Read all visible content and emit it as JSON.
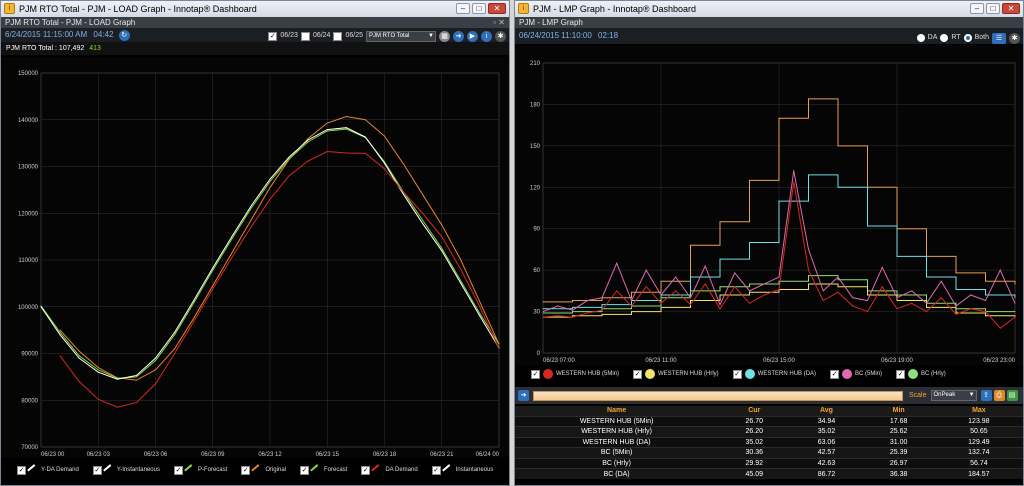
{
  "left": {
    "window_title": "PJM RTO Total - PJM - LOAD Graph - Innotap® Dashboard",
    "subtitle": "PJM RTO Total - PJM - LOAD Graph",
    "timestamp": "6/24/2015 11:15:00 AM",
    "refresh": "04:42",
    "date_checks": [
      "06/23",
      "06/24",
      "06/25"
    ],
    "zone_select": "PJM RTO Total",
    "summary_label": "PJM RTO Total :",
    "summary_value": "107,492",
    "summary_delta": "413",
    "legend": [
      {
        "label": "Y-DA Demand",
        "color": "#ffffff"
      },
      {
        "label": "Y-Instantaneous",
        "color": "#ffffff"
      },
      {
        "label": "P-Forecast",
        "color": "#7fdc3a"
      },
      {
        "label": "Original",
        "color": "#e8822a"
      },
      {
        "label": "Forecast",
        "color": "#7fdc3a"
      },
      {
        "label": "DA Demand",
        "color": "#d8281e"
      },
      {
        "label": "Instantaneous",
        "color": "#ffffff"
      }
    ],
    "chart_data": {
      "type": "line",
      "title": "",
      "xlabel": "",
      "ylabel": "",
      "ylim": [
        70000,
        150000
      ],
      "yticks": [
        70000,
        80000,
        90000,
        100000,
        110000,
        120000,
        130000,
        140000,
        150000
      ],
      "xticks": [
        "06/23 00",
        "06/23 03",
        "06/23 06",
        "06/23 09",
        "06/23 12",
        "06/23 15",
        "06/23 18",
        "06/23 21",
        "06/24 00"
      ],
      "xlim": [
        0,
        24
      ],
      "grid": true,
      "series": [
        {
          "name": "Original",
          "color": "#e8822a",
          "x": [
            1,
            2,
            3,
            4,
            5,
            6,
            7,
            8,
            9,
            10,
            11,
            12,
            13,
            14,
            15,
            16,
            17,
            18,
            19,
            20,
            21,
            22,
            23,
            24
          ],
          "y": [
            95000,
            90500,
            87000,
            84800,
            84300,
            86500,
            91000,
            97500,
            104500,
            111500,
            118500,
            125500,
            131500,
            136000,
            139300,
            140700,
            140000,
            136500,
            130500,
            124000,
            117500,
            110000,
            101000,
            92000
          ]
        },
        {
          "name": "Forecast",
          "color": "#7fdc3a",
          "x": [
            0,
            1,
            2,
            3,
            4,
            5,
            6,
            7,
            8,
            9,
            10,
            11,
            12,
            13,
            14,
            15,
            16,
            17,
            18,
            19,
            20,
            21,
            22,
            23,
            24
          ],
          "y": [
            100200,
            94500,
            89500,
            86500,
            84700,
            85000,
            88500,
            94000,
            100800,
            107800,
            114500,
            121000,
            126800,
            131600,
            135300,
            137600,
            138000,
            136200,
            131000,
            124500,
            118500,
            112500,
            105500,
            98500,
            92000
          ]
        },
        {
          "name": "Instantaneous",
          "color": "#ffffff",
          "x": [
            0,
            1,
            2,
            3,
            4,
            5,
            6,
            7,
            8,
            9,
            10,
            11,
            12,
            13,
            14,
            15,
            16,
            17,
            18,
            19,
            20,
            21,
            22,
            23,
            24
          ],
          "y": [
            100000,
            94000,
            89000,
            86000,
            84500,
            85300,
            89000,
            94500,
            101300,
            108300,
            115000,
            121500,
            127300,
            132000,
            135700,
            137900,
            138300,
            136300,
            130700,
            124000,
            117800,
            112000,
            105000,
            98000,
            91200
          ]
        },
        {
          "name": "DA Demand",
          "color": "#d8281e",
          "x": [
            1,
            2,
            3,
            4,
            5,
            6,
            7,
            8,
            9,
            10,
            11,
            12,
            13,
            14,
            15,
            16,
            17,
            18,
            19,
            20,
            21,
            22,
            23,
            24
          ],
          "y": [
            89500,
            84000,
            80200,
            78500,
            79500,
            83500,
            90000,
            96800,
            103800,
            110500,
            117000,
            123000,
            128000,
            131200,
            133200,
            132900,
            132800,
            129500,
            124500,
            120000,
            115000,
            108000,
            100000,
            91000
          ]
        }
      ]
    }
  },
  "right": {
    "window_title": "PJM - LMP Graph - Innotap® Dashboard",
    "subtitle": "PJM - LMP Graph",
    "timestamp": "06/24/2015 11:10:00",
    "refresh": "02:18",
    "radio_options": [
      "DA",
      "RT",
      "Both"
    ],
    "legend": [
      {
        "label": "WESTERN HUB (5Min)",
        "color": "#d8281e"
      },
      {
        "label": "WESTERN HUB (Hrly)",
        "color": "#f3e36a"
      },
      {
        "label": "WESTERN HUB (DA)",
        "color": "#6fe0e8"
      },
      {
        "label": "BC (5Min)",
        "color": "#e06ab0"
      },
      {
        "label": "BC (Hrly)",
        "color": "#8ee07a"
      }
    ],
    "scale_label": "Scale",
    "scale_value": "OnPeak",
    "table": {
      "headers": [
        "Name",
        "Cur",
        "Avg",
        "Min",
        "Max"
      ],
      "rows": [
        [
          "WESTERN HUB (5Min)",
          "26.70",
          "34.94",
          "17.68",
          "123.98"
        ],
        [
          "WESTERN HUB (Hrly)",
          "26.20",
          "35.02",
          "25.62",
          "50.65"
        ],
        [
          "WESTERN HUB (DA)",
          "35.02",
          "63.06",
          "31.00",
          "129.49"
        ],
        [
          "BC (5Min)",
          "30.36",
          "42.57",
          "25.39",
          "132.74"
        ],
        [
          "BC (Hrly)",
          "29.92",
          "42.63",
          "26.97",
          "56.74"
        ],
        [
          "BC (DA)",
          "45.09",
          "86.72",
          "36.38",
          "184.57"
        ]
      ]
    },
    "chart_data": {
      "type": "line",
      "title": "",
      "xlabel": "",
      "ylabel": "",
      "ylim": [
        0,
        210
      ],
      "yticks": [
        0,
        30,
        60,
        90,
        120,
        150,
        180,
        210
      ],
      "xticks": [
        "06/23 07:00",
        "06/23 11:00",
        "06/23 15:00",
        "06/23 19:00",
        "06/23 23:00"
      ],
      "xlim": [
        7,
        23
      ],
      "grid": true,
      "series": [
        {
          "name": "BC (DA)",
          "color": "#e8a050",
          "step": true,
          "x": [
            7,
            8,
            9,
            10,
            11,
            12,
            13,
            14,
            15,
            16,
            17,
            18,
            19,
            20,
            21,
            22,
            23
          ],
          "y": [
            37,
            38,
            40,
            44,
            52,
            78,
            95,
            125,
            170,
            184,
            150,
            120,
            90,
            70,
            58,
            52,
            50
          ]
        },
        {
          "name": "WESTERN HUB (DA)",
          "color": "#6fe0e8",
          "step": true,
          "x": [
            7,
            8,
            9,
            10,
            11,
            12,
            13,
            14,
            15,
            16,
            17,
            18,
            19,
            20,
            21,
            22,
            23
          ],
          "y": [
            32,
            33,
            35,
            38,
            42,
            55,
            68,
            80,
            110,
            129,
            120,
            92,
            70,
            55,
            46,
            42,
            40
          ]
        },
        {
          "name": "BC (Hrly)",
          "color": "#8ee07a",
          "step": true,
          "x": [
            7,
            8,
            9,
            10,
            11,
            12,
            13,
            14,
            15,
            16,
            17,
            18,
            19,
            20,
            21,
            22,
            23
          ],
          "y": [
            29,
            30,
            32,
            34,
            40,
            45,
            48,
            50,
            52,
            56,
            53,
            45,
            42,
            36,
            32,
            30,
            30
          ]
        },
        {
          "name": "WESTERN HUB (Hrly)",
          "color": "#f3e36a",
          "step": true,
          "x": [
            7,
            8,
            9,
            10,
            11,
            12,
            13,
            14,
            15,
            16,
            17,
            18,
            19,
            20,
            21,
            22,
            23
          ],
          "y": [
            26,
            27,
            28,
            30,
            33,
            38,
            42,
            44,
            46,
            50,
            48,
            42,
            38,
            33,
            29,
            27,
            26
          ]
        },
        {
          "name": "BC (5Min)",
          "color": "#e06ab0",
          "step": false,
          "x": [
            7,
            7.5,
            8,
            8.5,
            9,
            9.5,
            10,
            10.5,
            11,
            11.5,
            12,
            12.5,
            13,
            13.5,
            14,
            14.5,
            15,
            15.5,
            16,
            16.5,
            17,
            17.5,
            18,
            18.5,
            19,
            19.5,
            20,
            20.5,
            21,
            21.5,
            22,
            22.5,
            23
          ],
          "y": [
            30,
            34,
            31,
            38,
            40,
            65,
            38,
            60,
            42,
            55,
            40,
            63,
            35,
            58,
            45,
            50,
            55,
            132,
            75,
            45,
            55,
            40,
            38,
            62,
            40,
            45,
            36,
            52,
            34,
            42,
            38,
            60,
            36
          ]
        },
        {
          "name": "WESTERN HUB (5Min)",
          "color": "#d8281e",
          "step": false,
          "x": [
            7,
            7.5,
            8,
            8.5,
            9,
            9.5,
            10,
            10.5,
            11,
            11.5,
            12,
            12.5,
            13,
            13.5,
            14,
            14.5,
            15,
            15.5,
            16,
            16.5,
            17,
            17.5,
            18,
            18.5,
            19,
            19.5,
            20,
            20.5,
            21,
            21.5,
            22,
            22.5,
            23
          ],
          "y": [
            26,
            27,
            26,
            29,
            31,
            45,
            34,
            48,
            36,
            45,
            35,
            50,
            32,
            48,
            36,
            42,
            46,
            124,
            60,
            38,
            44,
            34,
            30,
            48,
            32,
            36,
            30,
            40,
            28,
            32,
            30,
            18,
            26
          ]
        }
      ]
    }
  }
}
